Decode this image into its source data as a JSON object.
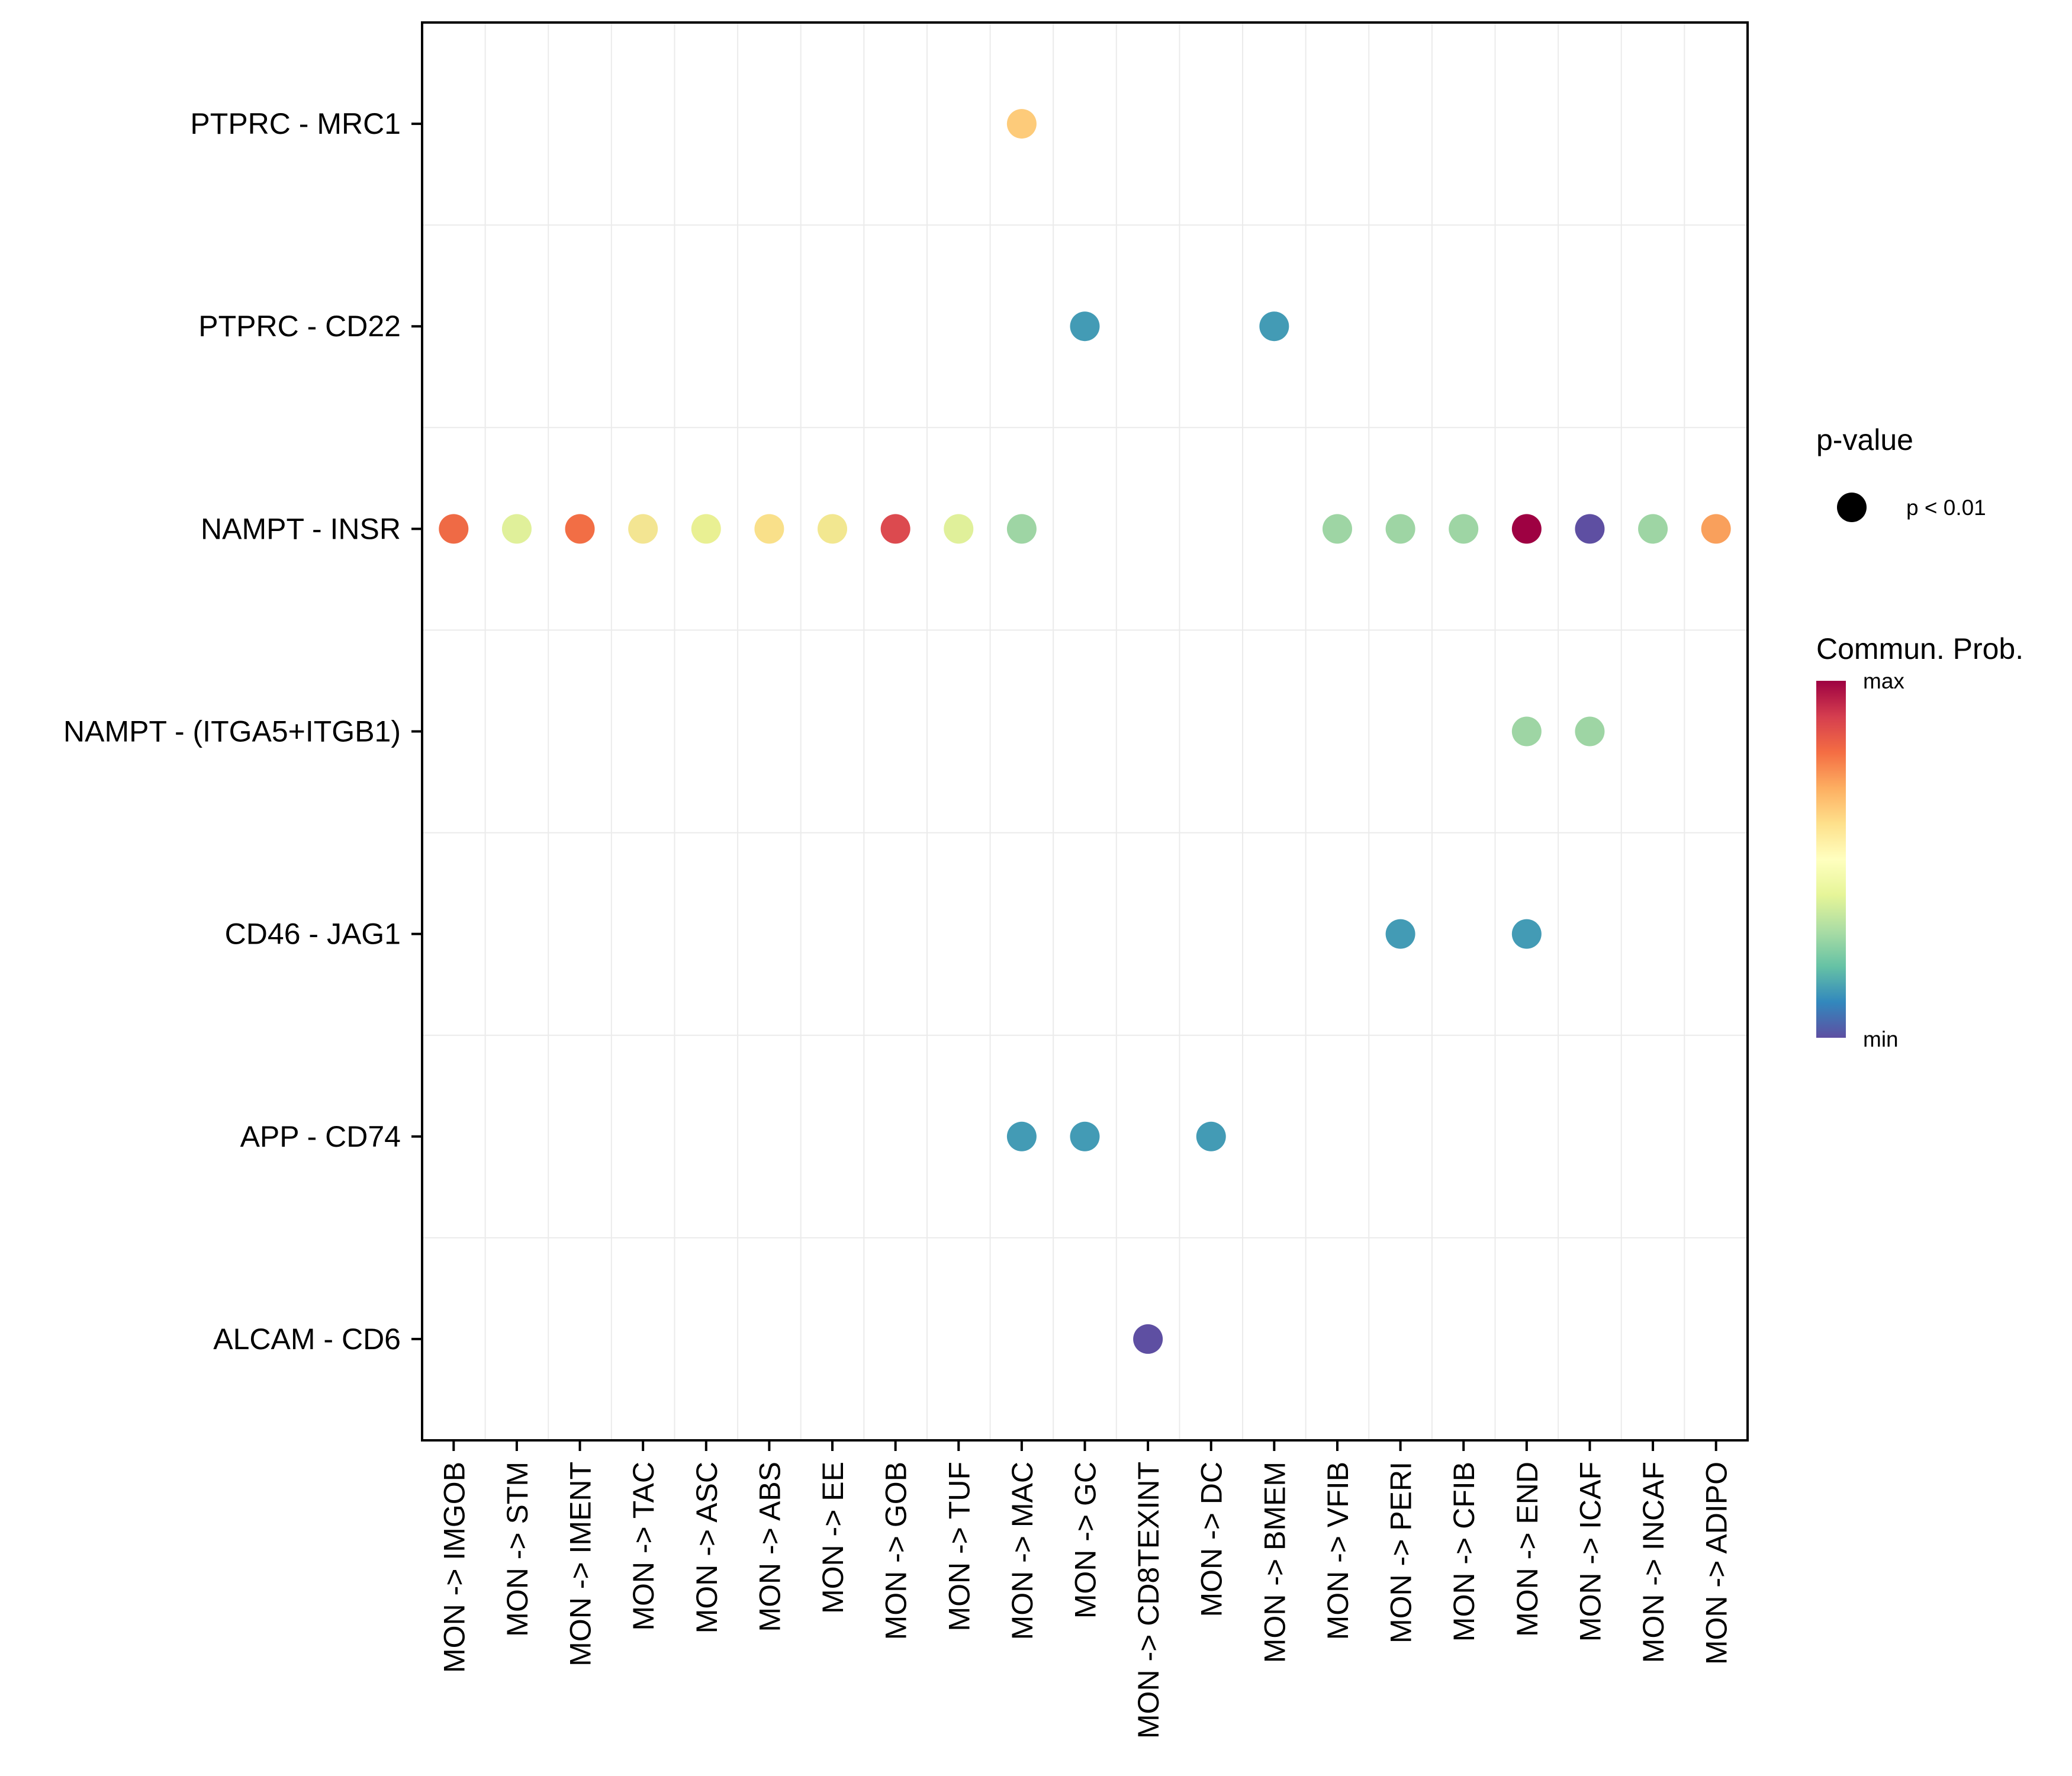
{
  "chart_data": {
    "type": "scatter",
    "subtype": "dot-plot",
    "title": "",
    "xlabel": "",
    "ylabel": "",
    "grid": true,
    "x_categories": [
      "MON -> IMGOB",
      "MON -> STM",
      "MON -> IMENT",
      "MON -> TAC",
      "MON -> ASC",
      "MON -> ABS",
      "MON -> EE",
      "MON -> GOB",
      "MON -> TUF",
      "MON -> MAC",
      "MON -> GC",
      "MON -> CD8TEXINT",
      "MON -> DC",
      "MON -> BMEM",
      "MON -> VFIB",
      "MON -> PERI",
      "MON -> CFIB",
      "MON -> END",
      "MON -> ICAF",
      "MON -> INCAF",
      "MON -> ADIPO"
    ],
    "y_categories": [
      "PTPRC - MRC1",
      "PTPRC - CD22",
      "NAMPT - INSR",
      "NAMPT - (ITGA5+ITGB1)",
      "CD46 - JAG1",
      "APP - CD74",
      "ALCAM - CD6"
    ],
    "points": [
      {
        "x": "MON -> MAC",
        "y": "PTPRC - MRC1",
        "prob": 0.6,
        "color": "#FDCB7A",
        "pvalue": "p < 0.01"
      },
      {
        "x": "MON -> GC",
        "y": "PTPRC - CD22",
        "prob": 0.15,
        "color": "#439BB5",
        "pvalue": "p < 0.01"
      },
      {
        "x": "MON -> BMEM",
        "y": "PTPRC - CD22",
        "prob": 0.15,
        "color": "#439BB5",
        "pvalue": "p < 0.01"
      },
      {
        "x": "MON -> IMGOB",
        "y": "NAMPT - INSR",
        "prob": 0.8,
        "color": "#EF6A45",
        "pvalue": "p < 0.01"
      },
      {
        "x": "MON -> STM",
        "y": "NAMPT - INSR",
        "prob": 0.45,
        "color": "#E0F09A",
        "pvalue": "p < 0.01"
      },
      {
        "x": "MON -> IMENT",
        "y": "NAMPT - INSR",
        "prob": 0.79,
        "color": "#F26E45",
        "pvalue": "p < 0.01"
      },
      {
        "x": "MON -> TAC",
        "y": "NAMPT - INSR",
        "prob": 0.52,
        "color": "#F3E592",
        "pvalue": "p < 0.01"
      },
      {
        "x": "MON -> ASC",
        "y": "NAMPT - INSR",
        "prob": 0.48,
        "color": "#E9F093",
        "pvalue": "p < 0.01"
      },
      {
        "x": "MON -> ABS",
        "y": "NAMPT - INSR",
        "prob": 0.57,
        "color": "#F9E08A",
        "pvalue": "p < 0.01"
      },
      {
        "x": "MON -> EE",
        "y": "NAMPT - INSR",
        "prob": 0.53,
        "color": "#F2E790",
        "pvalue": "p < 0.01"
      },
      {
        "x": "MON -> GOB",
        "y": "NAMPT - INSR",
        "prob": 0.88,
        "color": "#DC4A4F",
        "pvalue": "p < 0.01"
      },
      {
        "x": "MON -> TUF",
        "y": "NAMPT - INSR",
        "prob": 0.45,
        "color": "#E0F09A",
        "pvalue": "p < 0.01"
      },
      {
        "x": "MON -> MAC",
        "y": "NAMPT - INSR",
        "prob": 0.35,
        "color": "#9ED5A4",
        "pvalue": "p < 0.01"
      },
      {
        "x": "MON -> VFIB",
        "y": "NAMPT - INSR",
        "prob": 0.35,
        "color": "#9ED5A4",
        "pvalue": "p < 0.01"
      },
      {
        "x": "MON -> PERI",
        "y": "NAMPT - INSR",
        "prob": 0.35,
        "color": "#9ED5A4",
        "pvalue": "p < 0.01"
      },
      {
        "x": "MON -> CFIB",
        "y": "NAMPT - INSR",
        "prob": 0.35,
        "color": "#9ED5A4",
        "pvalue": "p < 0.01"
      },
      {
        "x": "MON -> END",
        "y": "NAMPT - INSR",
        "prob": 1.0,
        "color": "#9E0142",
        "pvalue": "p < 0.01"
      },
      {
        "x": "MON -> ICAF",
        "y": "NAMPT - INSR",
        "prob": 0.0,
        "color": "#5E4FA2",
        "pvalue": "p < 0.01"
      },
      {
        "x": "MON -> INCAF",
        "y": "NAMPT - INSR",
        "prob": 0.35,
        "color": "#9ED5A4",
        "pvalue": "p < 0.01"
      },
      {
        "x": "MON -> ADIPO",
        "y": "NAMPT - INSR",
        "prob": 0.7,
        "color": "#F9A05C",
        "pvalue": "p < 0.01"
      },
      {
        "x": "MON -> END",
        "y": "NAMPT - (ITGA5+ITGB1)",
        "prob": 0.35,
        "color": "#9ED5A4",
        "pvalue": "p < 0.01"
      },
      {
        "x": "MON -> ICAF",
        "y": "NAMPT - (ITGA5+ITGB1)",
        "prob": 0.35,
        "color": "#9ED5A4",
        "pvalue": "p < 0.01"
      },
      {
        "x": "MON -> PERI",
        "y": "CD46 - JAG1",
        "prob": 0.15,
        "color": "#439BB5",
        "pvalue": "p < 0.01"
      },
      {
        "x": "MON -> END",
        "y": "CD46 - JAG1",
        "prob": 0.15,
        "color": "#439BB5",
        "pvalue": "p < 0.01"
      },
      {
        "x": "MON -> MAC",
        "y": "APP - CD74",
        "prob": 0.15,
        "color": "#439BB5",
        "pvalue": "p < 0.01"
      },
      {
        "x": "MON -> GC",
        "y": "APP - CD74",
        "prob": 0.15,
        "color": "#439BB5",
        "pvalue": "p < 0.01"
      },
      {
        "x": "MON -> DC",
        "y": "APP - CD74",
        "prob": 0.15,
        "color": "#439BB5",
        "pvalue": "p < 0.01"
      },
      {
        "x": "MON -> CD8TEXINT",
        "y": "ALCAM - CD6",
        "prob": 0.02,
        "color": "#5E4FA2",
        "pvalue": "p < 0.01"
      }
    ],
    "legend": {
      "position": "right",
      "size_title": "p-value",
      "size_entries": [
        {
          "label": "p < 0.01",
          "color": "#000000"
        }
      ],
      "color_title": "Commun. Prob.",
      "color_max_label": "max",
      "color_min_label": "min",
      "colorbar_stops": [
        "#5E4FA2",
        "#3288BD",
        "#66C2A5",
        "#ABDDA4",
        "#E6F598",
        "#FFFFBF",
        "#FEE08B",
        "#FDAE61",
        "#F46D43",
        "#D53E4F",
        "#9E0142"
      ]
    }
  }
}
